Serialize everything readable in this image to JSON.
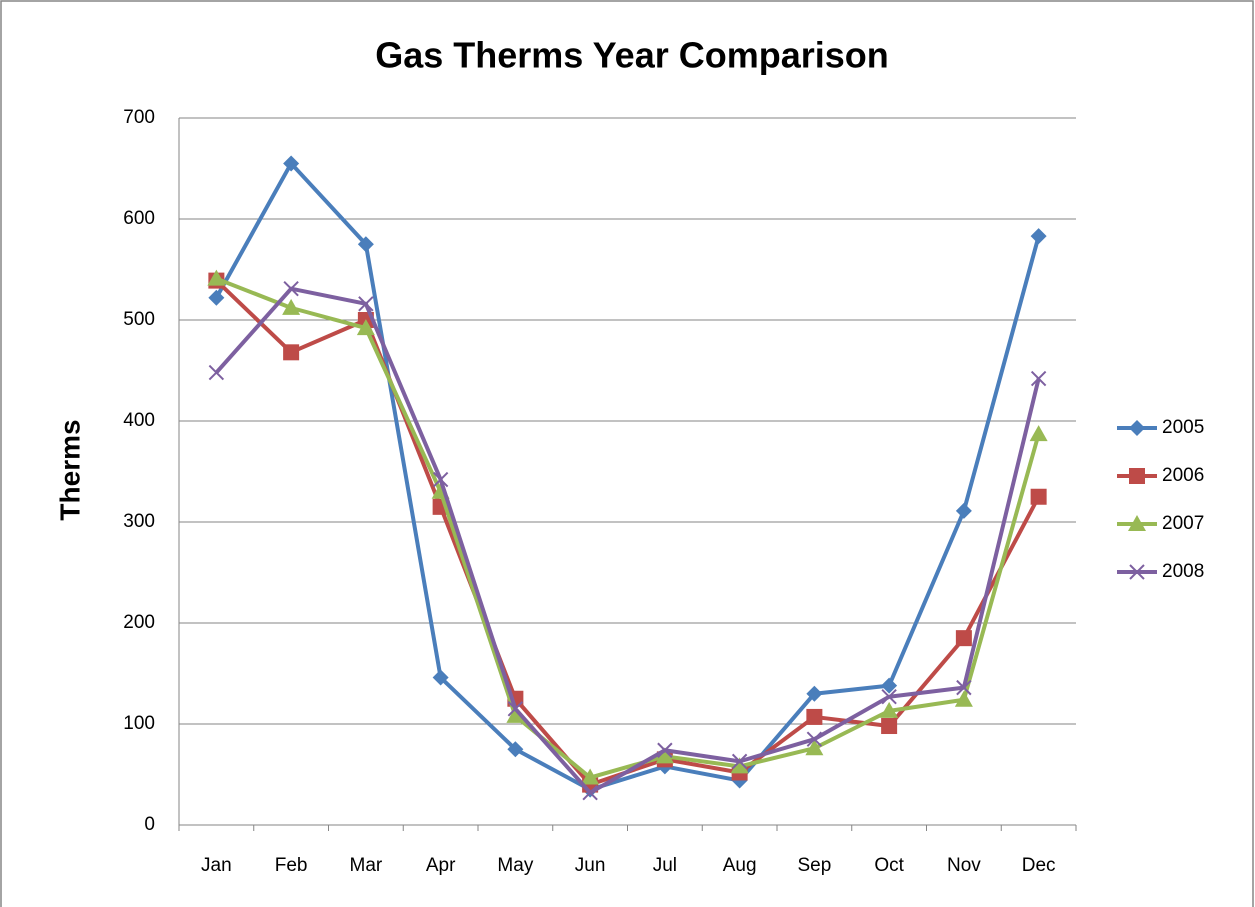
{
  "chart_data": {
    "type": "line",
    "title": "Gas Therms Year Comparison",
    "y_label": "Therms",
    "categories": [
      "Jan",
      "Feb",
      "Mar",
      "Apr",
      "May",
      "Jun",
      "Jul",
      "Aug",
      "Sep",
      "Oct",
      "Nov",
      "Dec"
    ],
    "series": [
      {
        "name": "2005",
        "color": "#4a7ebb",
        "marker": "diamond",
        "values": [
          522,
          655,
          575,
          146,
          75,
          35,
          58,
          44,
          130,
          138,
          311,
          583
        ]
      },
      {
        "name": "2006",
        "color": "#be4b48",
        "marker": "square",
        "values": [
          539,
          468,
          500,
          315,
          125,
          40,
          65,
          52,
          107,
          98,
          185,
          325
        ]
      },
      {
        "name": "2007",
        "color": "#98b954",
        "marker": "triangle",
        "values": [
          541,
          512,
          492,
          330,
          108,
          47,
          68,
          58,
          76,
          113,
          124,
          387
        ]
      },
      {
        "name": "2008",
        "color": "#7d60a0",
        "marker": "x",
        "values": [
          448,
          531,
          516,
          342,
          115,
          32,
          74,
          63,
          85,
          127,
          136,
          442
        ]
      }
    ],
    "ylim": [
      0,
      700
    ],
    "yticks": [
      0,
      100,
      200,
      300,
      400,
      500,
      600,
      700
    ],
    "grid": true,
    "legend": "right"
  }
}
